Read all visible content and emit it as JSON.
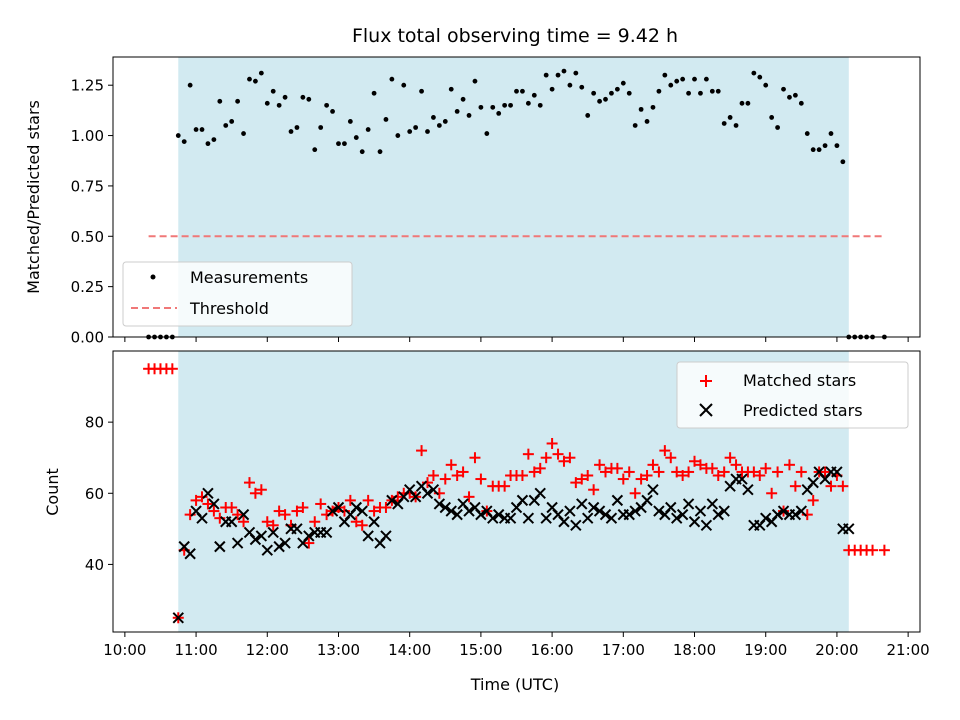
{
  "chart_data": [
    {
      "type": "scatter",
      "panel": "top",
      "title": "Flux total observing time = 9.42 h",
      "xlabel": "",
      "ylabel": "Matched/Predicted stars",
      "xlim": [
        "09:50",
        "21:10"
      ],
      "ylim": [
        0,
        1.39
      ],
      "y_ticks": [
        "0.00",
        "0.25",
        "0.50",
        "0.75",
        "1.00",
        "1.25"
      ],
      "x_ticks": [
        "10:00",
        "11:00",
        "12:00",
        "13:00",
        "14:00",
        "15:00",
        "16:00",
        "17:00",
        "18:00",
        "19:00",
        "20:00",
        "21:00"
      ],
      "grid": false,
      "legend_position": "lower-left",
      "observing_window": [
        "10:45",
        "20:10"
      ],
      "series": [
        {
          "name": "Measurements",
          "marker": "dot",
          "color": "#000000",
          "x": [
            "10:20",
            "10:25",
            "10:30",
            "10:35",
            "10:40",
            "10:45",
            "10:50",
            "10:55",
            "11:00",
            "11:05",
            "11:10",
            "11:15",
            "11:20",
            "11:25",
            "11:30",
            "11:35",
            "11:40",
            "11:45",
            "11:50",
            "11:55",
            "12:00",
            "12:05",
            "12:10",
            "12:15",
            "12:20",
            "12:25",
            "12:30",
            "12:35",
            "12:40",
            "12:45",
            "12:50",
            "12:55",
            "13:00",
            "13:05",
            "13:10",
            "13:15",
            "13:20",
            "13:25",
            "13:30",
            "13:35",
            "13:40",
            "13:45",
            "13:50",
            "13:55",
            "14:00",
            "14:05",
            "14:10",
            "14:15",
            "14:20",
            "14:25",
            "14:30",
            "14:35",
            "14:40",
            "14:45",
            "14:50",
            "14:55",
            "15:00",
            "15:05",
            "15:10",
            "15:15",
            "15:20",
            "15:25",
            "15:30",
            "15:35",
            "15:40",
            "15:45",
            "15:50",
            "15:55",
            "16:00",
            "16:05",
            "16:10",
            "16:15",
            "16:20",
            "16:25",
            "16:30",
            "16:35",
            "16:40",
            "16:45",
            "16:50",
            "16:55",
            "17:00",
            "17:05",
            "17:10",
            "17:15",
            "17:20",
            "17:25",
            "17:30",
            "17:35",
            "17:40",
            "17:45",
            "17:50",
            "17:55",
            "18:00",
            "18:05",
            "18:10",
            "18:15",
            "18:20",
            "18:25",
            "18:30",
            "18:35",
            "18:40",
            "18:45",
            "18:50",
            "18:55",
            "19:00",
            "19:05",
            "19:10",
            "19:15",
            "19:20",
            "19:25",
            "19:30",
            "19:35",
            "19:40",
            "19:45",
            "19:50",
            "19:55",
            "20:00",
            "20:05",
            "20:10",
            "20:15",
            "20:20",
            "20:25",
            "20:30",
            "20:40"
          ],
          "y": [
            0,
            0,
            0,
            0,
            0,
            1.0,
            0.97,
            1.25,
            1.03,
            1.03,
            0.96,
            0.98,
            1.17,
            1.05,
            1.07,
            1.17,
            1.01,
            1.28,
            1.27,
            1.31,
            1.16,
            1.22,
            1.15,
            1.19,
            1.02,
            1.04,
            1.19,
            1.18,
            0.93,
            1.04,
            1.15,
            1.12,
            0.96,
            0.96,
            1.07,
            0.99,
            0.92,
            1.03,
            1.21,
            0.92,
            1.08,
            1.28,
            1.0,
            1.25,
            1.02,
            1.04,
            1.22,
            1.02,
            1.09,
            1.05,
            1.07,
            1.23,
            1.12,
            1.18,
            1.1,
            1.27,
            1.14,
            1.01,
            1.14,
            1.11,
            1.15,
            1.15,
            1.22,
            1.22,
            1.16,
            1.2,
            1.15,
            1.3,
            1.23,
            1.3,
            1.32,
            1.25,
            1.31,
            1.24,
            1.1,
            1.21,
            1.17,
            1.18,
            1.21,
            1.23,
            1.26,
            1.21,
            1.05,
            1.13,
            1.07,
            1.14,
            1.22,
            1.3,
            1.25,
            1.27,
            1.28,
            1.21,
            1.28,
            1.21,
            1.28,
            1.22,
            1.22,
            1.06,
            1.09,
            1.05,
            1.16,
            1.16,
            1.31,
            1.29,
            1.25,
            1.09,
            1.04,
            1.23,
            1.19,
            1.2,
            1.16,
            1.01,
            0.93,
            0.93,
            0.95,
            1.01,
            0.95,
            0.87,
            0,
            0,
            0,
            0,
            0,
            0
          ]
        },
        {
          "name": "Threshold",
          "marker": "dashed-line",
          "color": "#f07878",
          "x": [
            "10:20",
            "20:40"
          ],
          "y": [
            0.5,
            0.5
          ]
        }
      ]
    },
    {
      "type": "scatter",
      "panel": "bottom",
      "title": "",
      "xlabel": "Time (UTC)",
      "ylabel": "Count",
      "xlim": [
        "09:50",
        "21:10"
      ],
      "ylim": [
        21,
        100
      ],
      "y_ticks": [
        "40",
        "60",
        "80"
      ],
      "x_ticks": [
        "10:00",
        "11:00",
        "12:00",
        "13:00",
        "14:00",
        "15:00",
        "16:00",
        "17:00",
        "18:00",
        "19:00",
        "20:00",
        "21:00"
      ],
      "grid": false,
      "legend_position": "upper-right",
      "observing_window": [
        "10:45",
        "20:10"
      ],
      "series": [
        {
          "name": "Matched stars",
          "marker": "plus",
          "color": "#ff0000",
          "x": [
            "10:20",
            "10:25",
            "10:30",
            "10:35",
            "10:40",
            "10:45",
            "10:50",
            "10:55",
            "11:00",
            "11:05",
            "11:10",
            "11:15",
            "11:20",
            "11:25",
            "11:30",
            "11:35",
            "11:40",
            "11:45",
            "11:50",
            "11:55",
            "12:00",
            "12:05",
            "12:10",
            "12:15",
            "12:20",
            "12:25",
            "12:30",
            "12:35",
            "12:40",
            "12:45",
            "12:50",
            "12:55",
            "13:00",
            "13:05",
            "13:10",
            "13:15",
            "13:20",
            "13:25",
            "13:30",
            "13:35",
            "13:40",
            "13:45",
            "13:50",
            "13:55",
            "14:00",
            "14:05",
            "14:10",
            "14:15",
            "14:20",
            "14:25",
            "14:30",
            "14:35",
            "14:40",
            "14:45",
            "14:50",
            "14:55",
            "15:00",
            "15:05",
            "15:10",
            "15:15",
            "15:20",
            "15:25",
            "15:30",
            "15:35",
            "15:40",
            "15:45",
            "15:50",
            "15:55",
            "16:00",
            "16:05",
            "16:10",
            "16:15",
            "16:20",
            "16:25",
            "16:30",
            "16:35",
            "16:40",
            "16:45",
            "16:50",
            "16:55",
            "17:00",
            "17:05",
            "17:10",
            "17:15",
            "17:20",
            "17:25",
            "17:30",
            "17:35",
            "17:40",
            "17:45",
            "17:50",
            "17:55",
            "18:00",
            "18:05",
            "18:10",
            "18:15",
            "18:20",
            "18:25",
            "18:30",
            "18:35",
            "18:40",
            "18:45",
            "18:50",
            "18:55",
            "19:00",
            "19:05",
            "19:10",
            "19:15",
            "19:20",
            "19:25",
            "19:30",
            "19:35",
            "19:40",
            "19:45",
            "19:50",
            "19:55",
            "20:00",
            "20:05",
            "20:10",
            "20:15",
            "20:20",
            "20:25",
            "20:30",
            "20:40"
          ],
          "y": [
            95,
            95,
            95,
            95,
            95,
            25,
            44,
            54,
            58,
            59,
            57,
            55,
            53,
            56,
            56,
            54,
            52,
            63,
            60,
            61,
            52,
            51,
            55,
            54,
            51,
            55,
            56,
            46,
            52,
            57,
            54,
            55,
            56,
            55,
            58,
            52,
            51,
            58,
            55,
            56,
            56,
            58,
            59,
            60,
            60,
            59,
            72,
            63,
            65,
            60,
            64,
            68,
            65,
            66,
            59,
            70,
            64,
            55,
            62,
            62,
            62,
            65,
            65,
            65,
            71,
            66,
            67,
            70,
            74,
            71,
            69,
            70,
            63,
            64,
            65,
            61,
            68,
            66,
            67,
            67,
            64,
            66,
            60,
            64,
            65,
            68,
            66,
            72,
            70,
            66,
            65,
            66,
            69,
            68,
            67,
            67,
            65,
            66,
            70,
            68,
            66,
            66,
            66,
            65,
            67,
            60,
            66,
            55,
            68,
            62,
            66,
            54,
            58,
            66,
            66,
            62,
            65,
            62,
            44,
            44,
            44,
            44,
            44,
            44
          ]
        },
        {
          "name": "Predicted stars",
          "marker": "x",
          "color": "#000000",
          "x": [
            "10:45",
            "10:50",
            "10:55",
            "11:00",
            "11:05",
            "11:10",
            "11:15",
            "11:20",
            "11:25",
            "11:30",
            "11:35",
            "11:40",
            "11:45",
            "11:50",
            "11:55",
            "12:00",
            "12:05",
            "12:10",
            "12:15",
            "12:20",
            "12:25",
            "12:30",
            "12:35",
            "12:40",
            "12:45",
            "12:50",
            "12:55",
            "13:00",
            "13:05",
            "13:10",
            "13:15",
            "13:20",
            "13:25",
            "13:30",
            "13:35",
            "13:40",
            "13:45",
            "13:50",
            "13:55",
            "14:00",
            "14:05",
            "14:10",
            "14:15",
            "14:20",
            "14:25",
            "14:30",
            "14:35",
            "14:40",
            "14:45",
            "14:50",
            "14:55",
            "15:00",
            "15:05",
            "15:10",
            "15:15",
            "15:20",
            "15:25",
            "15:30",
            "15:35",
            "15:40",
            "15:45",
            "15:50",
            "15:55",
            "16:00",
            "16:05",
            "16:10",
            "16:15",
            "16:20",
            "16:25",
            "16:30",
            "16:35",
            "16:40",
            "16:45",
            "16:50",
            "16:55",
            "17:00",
            "17:05",
            "17:10",
            "17:15",
            "17:20",
            "17:25",
            "17:30",
            "17:35",
            "17:40",
            "17:45",
            "17:50",
            "17:55",
            "18:00",
            "18:05",
            "18:10",
            "18:15",
            "18:20",
            "18:25",
            "18:30",
            "18:35",
            "18:40",
            "18:45",
            "18:50",
            "18:55",
            "19:00",
            "19:05",
            "19:10",
            "19:15",
            "19:20",
            "19:25",
            "19:30",
            "19:35",
            "19:40",
            "19:45",
            "19:50",
            "19:55",
            "20:00",
            "20:05",
            "20:10"
          ],
          "y": [
            25,
            45,
            43,
            55,
            53,
            60,
            57,
            45,
            52,
            52,
            46,
            54,
            49,
            47,
            48,
            44,
            49,
            45,
            46,
            50,
            50,
            46,
            48,
            49,
            49,
            49,
            55,
            56,
            52,
            54,
            56,
            55,
            48,
            52,
            46,
            48,
            58,
            57,
            59,
            61,
            59,
            62,
            60,
            61,
            57,
            56,
            55,
            54,
            57,
            55,
            56,
            54,
            55,
            53,
            54,
            53,
            53,
            56,
            58,
            53,
            58,
            60,
            53,
            56,
            54,
            52,
            55,
            51,
            57,
            53,
            56,
            55,
            54,
            53,
            58,
            54,
            54,
            55,
            56,
            58,
            61,
            55,
            54,
            56,
            53,
            54,
            57,
            52,
            55,
            51,
            57,
            54,
            55,
            62,
            64,
            64,
            61,
            51,
            51,
            53,
            52,
            54,
            55,
            54,
            54,
            55,
            61,
            63,
            66,
            64,
            66,
            66,
            50,
            50
          ]
        }
      ]
    }
  ]
}
